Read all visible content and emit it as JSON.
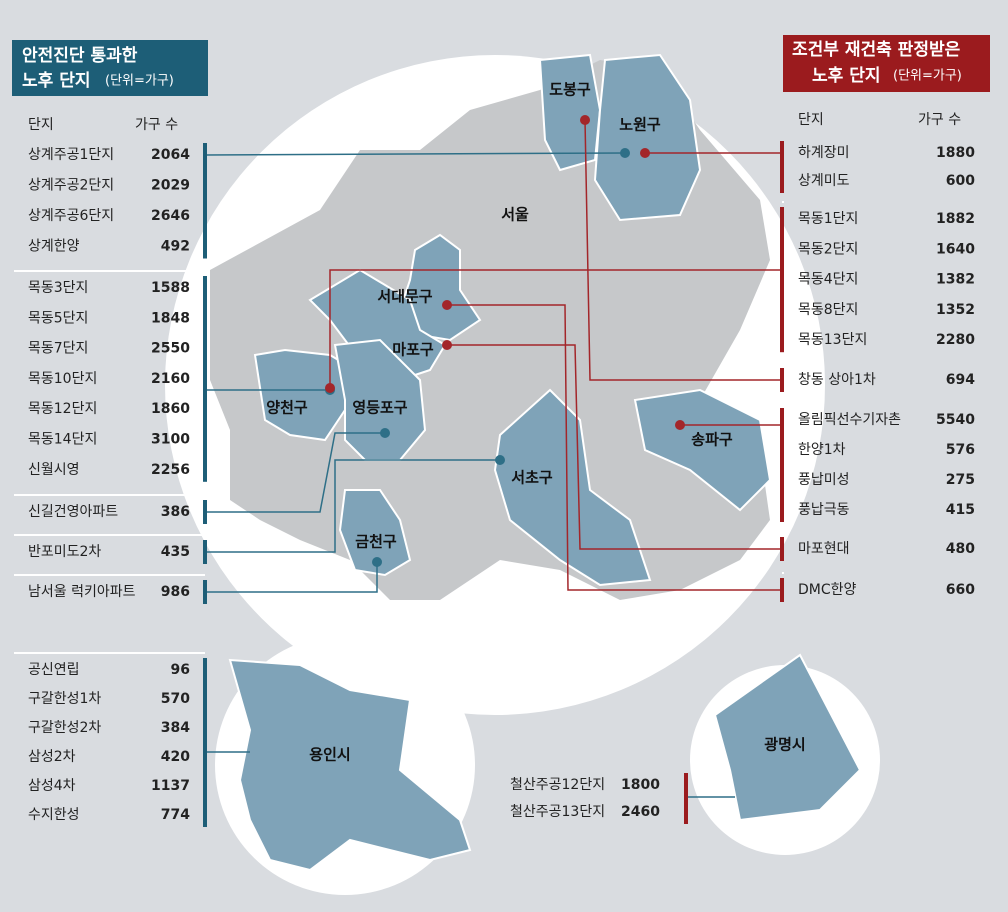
{
  "left_panel": {
    "title_line1": "안전진단 통과한",
    "title_line2": "노후 단지",
    "unit": "(단위=가구)",
    "header": {
      "name": "단지",
      "count": "가구 수"
    },
    "groups": [
      [
        {
          "name": "상계주공1단지",
          "count": 2064
        },
        {
          "name": "상계주공2단지",
          "count": 2029
        },
        {
          "name": "상계주공6단지",
          "count": 2646
        },
        {
          "name": "상계한양",
          "count": 492
        }
      ],
      [
        {
          "name": "목동3단지",
          "count": 1588
        },
        {
          "name": "목동5단지",
          "count": 1848
        },
        {
          "name": "목동7단지",
          "count": 2550
        },
        {
          "name": "목동10단지",
          "count": 2160
        },
        {
          "name": "목동12단지",
          "count": 1860
        },
        {
          "name": "목동14단지",
          "count": 3100
        },
        {
          "name": "신월시영",
          "count": 2256
        }
      ],
      [
        {
          "name": "신길건영아파트",
          "count": 386
        }
      ],
      [
        {
          "name": "반포미도2차",
          "count": 435
        }
      ],
      [
        {
          "name": "남서울 럭키아파트",
          "count": 986
        }
      ],
      [
        {
          "name": "공신연립",
          "count": 96
        },
        {
          "name": "구갈한성1차",
          "count": 570
        },
        {
          "name": "구갈한성2차",
          "count": 384
        },
        {
          "name": "삼성2차",
          "count": 420
        },
        {
          "name": "삼성4차",
          "count": 1137
        },
        {
          "name": "수지한성",
          "count": 774
        }
      ]
    ]
  },
  "right_panel": {
    "title_line1": "조건부 재건축 판정받은",
    "title_line2": "노후 단지",
    "unit": "(단위=가구)",
    "header": {
      "name": "단지",
      "count": "가구 수"
    },
    "groups": [
      [
        {
          "name": "하계장미",
          "count": 1880
        },
        {
          "name": "상계미도",
          "count": 600
        }
      ],
      [
        {
          "name": "목동1단지",
          "count": 1882
        },
        {
          "name": "목동2단지",
          "count": 1640
        },
        {
          "name": "목동4단지",
          "count": 1382
        },
        {
          "name": "목동8단지",
          "count": 1352
        },
        {
          "name": "목동13단지",
          "count": 2280
        }
      ],
      [
        {
          "name": "창동 상아1차",
          "count": 694
        }
      ],
      [
        {
          "name": "올림픽선수기자촌",
          "count": 5540
        },
        {
          "name": "한양1차",
          "count": 576
        },
        {
          "name": "풍납미성",
          "count": 275
        },
        {
          "name": "풍납극동",
          "count": 415
        }
      ],
      [
        {
          "name": "마포현대",
          "count": 480
        }
      ],
      [
        {
          "name": "DMC한양",
          "count": 660
        }
      ],
      [
        {
          "name": "철산주공12단지",
          "count": 1800
        },
        {
          "name": "철산주공13단지",
          "count": 2460
        }
      ]
    ]
  },
  "map_labels": {
    "seoul": "서울",
    "dobong": "도봉구",
    "nowon": "노원구",
    "seodaemun": "서대문구",
    "mapo": "마포구",
    "yangcheon": "양천구",
    "yeongdeungpo": "영등포구",
    "seocho": "서초구",
    "songpa": "송파구",
    "geumcheon": "금천구",
    "yongin": "용인시",
    "gwangmyeong": "광명시"
  }
}
